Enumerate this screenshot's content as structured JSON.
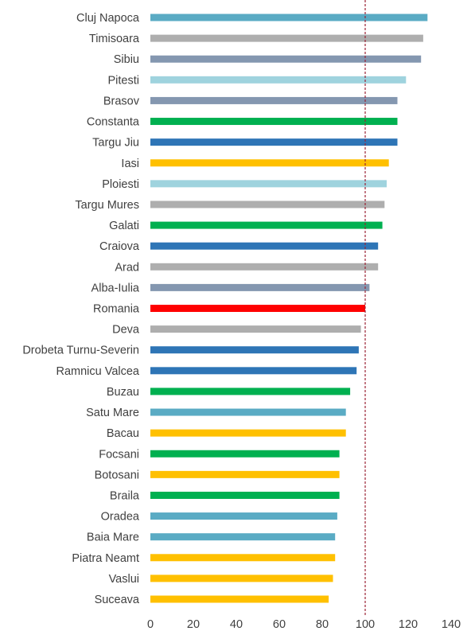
{
  "chart_data": {
    "type": "bar",
    "orientation": "horizontal",
    "title": "",
    "xlabel": "",
    "ylabel": "",
    "xlim": [
      0,
      140
    ],
    "xticks": [
      0,
      20,
      40,
      60,
      80,
      100,
      120,
      140
    ],
    "grid": false,
    "legend": "none",
    "reference_line": {
      "value": 100,
      "style": "dashed",
      "color": "#9b2335"
    },
    "categories": [
      "Cluj Napoca",
      "Timisoara",
      "Sibiu",
      "Pitesti",
      "Brasov",
      "Constanta",
      "Targu Jiu",
      "Iasi",
      "Ploiesti",
      "Targu Mures",
      "Galati",
      "Craiova",
      "Arad",
      "Alba-Iulia",
      "Romania",
      "Deva",
      "Drobeta Turnu-Severin",
      "Ramnicu Valcea",
      "Buzau",
      "Satu Mare",
      "Bacau",
      "Focsani",
      "Botosani",
      "Braila",
      "Oradea",
      "Baia Mare",
      "Piatra Neamt",
      "Vaslui",
      "Suceava"
    ],
    "values": [
      129,
      127,
      126,
      119,
      115,
      115,
      115,
      111,
      110,
      109,
      108,
      106,
      106,
      102,
      100,
      98,
      97,
      96,
      93,
      91,
      91,
      88,
      88,
      88,
      87,
      86,
      86,
      85,
      83
    ],
    "bar_colors": [
      "#5aabc4",
      "#aeaeae",
      "#8497b0",
      "#9fd3de",
      "#8497b0",
      "#00b050",
      "#2e75b6",
      "#ffc000",
      "#9fd3de",
      "#aeaeae",
      "#00b050",
      "#2e75b6",
      "#aeaeae",
      "#8497b0",
      "#ff0000",
      "#aeaeae",
      "#2e75b6",
      "#2e75b6",
      "#00b050",
      "#5aabc4",
      "#ffc000",
      "#00b050",
      "#ffc000",
      "#00b050",
      "#5aabc4",
      "#5aabc4",
      "#ffc000",
      "#ffc000",
      "#ffc000"
    ]
  }
}
